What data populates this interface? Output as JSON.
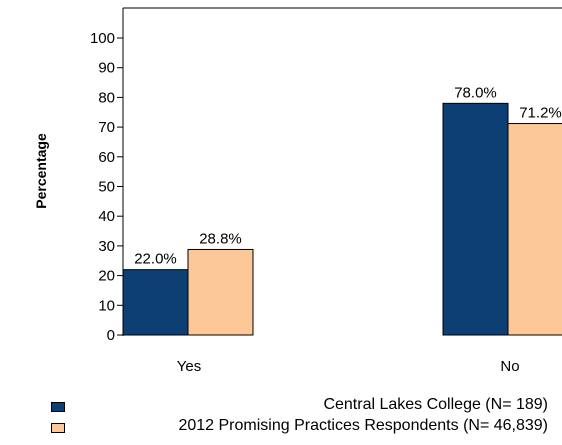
{
  "chart_data": {
    "type": "bar",
    "categories": [
      "Yes",
      "No"
    ],
    "series": [
      {
        "name": "Central Lakes College  (N= 189)",
        "values": [
          22.0,
          78.0
        ],
        "labels": [
          "22.0%",
          "78.0%"
        ]
      },
      {
        "name": "2012 Promising Practices Respondents (N= 46,839)",
        "values": [
          28.8,
          71.2
        ],
        "labels": [
          "28.8%",
          "71.2%"
        ]
      }
    ],
    "ylabel": "Percentage",
    "xlabel": "",
    "ylim": [
      0,
      100
    ],
    "yticks": [
      0,
      10,
      20,
      30,
      40,
      50,
      60,
      70,
      80,
      90,
      100
    ],
    "grid": false,
    "legend_position": "bottom",
    "colors": [
      "#0d3e74",
      "#fcc898"
    ],
    "edge_color": "#000000"
  }
}
